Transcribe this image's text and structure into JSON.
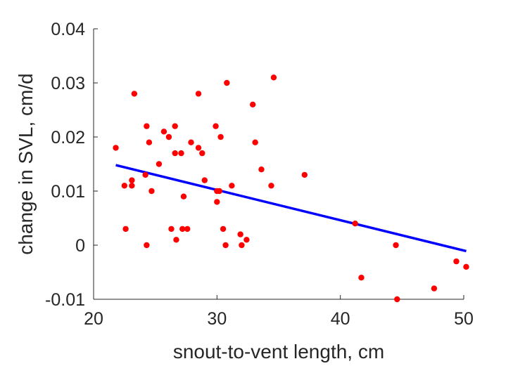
{
  "chart_data": {
    "type": "scatter",
    "title": "",
    "xlabel": "snout-to-vent length, cm",
    "ylabel": "change in SVL, cm/d",
    "xlim": [
      20,
      50
    ],
    "ylim": [
      -0.01,
      0.04
    ],
    "x_ticks": [
      "20",
      "30",
      "40",
      "50"
    ],
    "y_ticks": [
      "-0.01",
      "0",
      "0.01",
      "0.02",
      "0.03",
      "0.04"
    ],
    "x_tick_values": [
      20,
      30,
      40,
      50
    ],
    "y_tick_values": [
      -0.01,
      0,
      0.01,
      0.02,
      0.03,
      0.04
    ],
    "grid": false,
    "series": [
      {
        "kind": "points",
        "color": "#ff0000",
        "points": [
          [
            21.8,
            0.018
          ],
          [
            22.5,
            0.011
          ],
          [
            22.6,
            0.003
          ],
          [
            23.1,
            0.012
          ],
          [
            23.1,
            0.011
          ],
          [
            23.3,
            0.028
          ],
          [
            24.2,
            0.013
          ],
          [
            24.3,
            0.022
          ],
          [
            24.3,
            0.0
          ],
          [
            24.5,
            0.019
          ],
          [
            24.7,
            0.01
          ],
          [
            25.3,
            0.015
          ],
          [
            25.7,
            0.021
          ],
          [
            26.1,
            0.02
          ],
          [
            26.3,
            0.003
          ],
          [
            26.6,
            0.022
          ],
          [
            26.6,
            0.017
          ],
          [
            26.7,
            0.001
          ],
          [
            27.1,
            0.017
          ],
          [
            27.2,
            0.003
          ],
          [
            27.3,
            0.009
          ],
          [
            27.6,
            0.003
          ],
          [
            27.9,
            0.019
          ],
          [
            28.5,
            0.018
          ],
          [
            28.5,
            0.028
          ],
          [
            28.8,
            0.017
          ],
          [
            29.0,
            0.012
          ],
          [
            29.9,
            0.022
          ],
          [
            30.0,
            0.01
          ],
          [
            30.0,
            0.008
          ],
          [
            30.2,
            0.01
          ],
          [
            30.3,
            0.02
          ],
          [
            30.5,
            0.003
          ],
          [
            30.7,
            0.0
          ],
          [
            30.8,
            0.03
          ],
          [
            31.2,
            0.011
          ],
          [
            31.9,
            0.002
          ],
          [
            32.0,
            0.0
          ],
          [
            32.4,
            0.001
          ],
          [
            32.9,
            0.026
          ],
          [
            33.1,
            0.019
          ],
          [
            33.6,
            0.014
          ],
          [
            34.4,
            0.011
          ],
          [
            34.6,
            0.031
          ],
          [
            37.1,
            0.013
          ],
          [
            41.2,
            0.004
          ],
          [
            41.7,
            -0.006
          ],
          [
            44.5,
            0.0
          ],
          [
            44.6,
            -0.01
          ],
          [
            47.6,
            -0.008
          ],
          [
            49.4,
            -0.003
          ],
          [
            50.2,
            -0.004
          ]
        ]
      },
      {
        "kind": "line",
        "color": "#0000ff",
        "points": [
          [
            21.8,
            0.0148
          ],
          [
            50.2,
            -0.0011
          ]
        ]
      }
    ]
  }
}
